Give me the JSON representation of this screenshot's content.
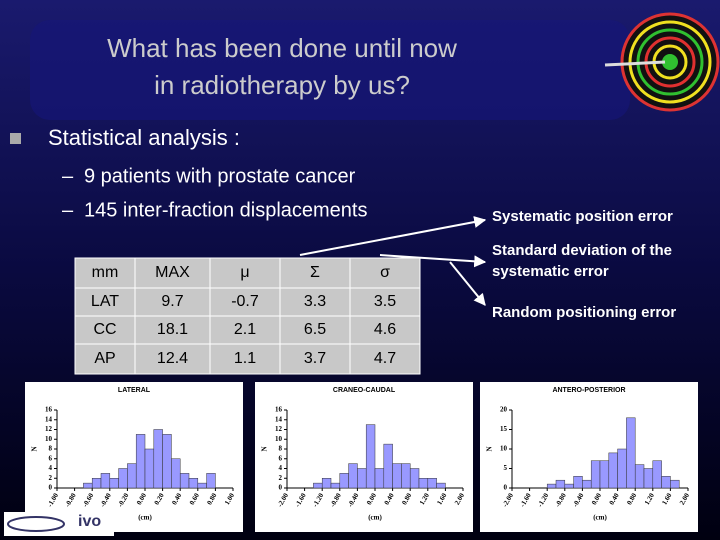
{
  "title": [
    "What has been done until now",
    "in radiotherapy by us?"
  ],
  "bullet": "Statistical analysis :",
  "sub_bullets": [
    "9 patients with prostate cancer",
    "145 inter-fraction displacements"
  ],
  "annotations": [
    "Systematic position error",
    "Standard deviation of the systematic error",
    "Random positioning error"
  ],
  "table": {
    "header": [
      "mm",
      "MAX",
      "μ",
      "Σ",
      "σ"
    ],
    "rows": [
      [
        "LAT",
        "9.7",
        "-0.7",
        "3.3",
        "3.5"
      ],
      [
        "CC",
        "18.1",
        "2.1",
        "6.5",
        "4.6"
      ],
      [
        "AP",
        "12.4",
        "1.1",
        "3.7",
        "4.7"
      ]
    ]
  },
  "logo": "ivo",
  "chart_data": [
    {
      "type": "histogram",
      "title": "LATERAL",
      "x_label": "(cm)",
      "y_label": "N",
      "color": "#9999ff",
      "bins": [
        -1.0,
        -0.9,
        -0.8,
        -0.7,
        -0.6,
        -0.5,
        -0.4,
        -0.3,
        -0.2,
        -0.1,
        0.0,
        0.1,
        0.2,
        0.3,
        0.4,
        0.5,
        0.6,
        0.7,
        0.8,
        0.9,
        1.0
      ],
      "values": [
        0,
        0,
        0,
        1,
        2,
        3,
        2,
        4,
        5,
        11,
        8,
        12,
        11,
        6,
        3,
        2,
        1,
        3,
        0,
        0
      ],
      "xlim": [
        -1,
        1
      ],
      "xticks": [
        {
          "value": -1,
          "label": "-1.00"
        },
        {
          "value": -0.8,
          "label": "-0.80"
        },
        {
          "value": -0.6,
          "label": "-0.60"
        },
        {
          "value": -0.4,
          "label": "-0.40"
        },
        {
          "value": -0.2,
          "label": "-0.20"
        },
        {
          "value": 0,
          "label": "0.00"
        },
        {
          "value": 0.2,
          "label": "0.20"
        },
        {
          "value": 0.4,
          "label": "0.40"
        },
        {
          "value": 0.6,
          "label": "0.60"
        },
        {
          "value": 0.8,
          "label": "0.80"
        },
        {
          "value": 1,
          "label": "1.00"
        }
      ],
      "ylim": [
        0,
        16
      ],
      "yticks": [
        0,
        2,
        4,
        6,
        8,
        10,
        12,
        14,
        16
      ]
    },
    {
      "type": "histogram",
      "title": "CRANEO-CAUDAL",
      "x_label": "(cm)",
      "y_label": "N",
      "color": "#9999ff",
      "bins": [
        -2.0,
        -1.8,
        -1.6,
        -1.4,
        -1.2,
        -1.0,
        -0.8,
        -0.6,
        -0.4,
        -0.2,
        0.0,
        0.2,
        0.4,
        0.6,
        0.8,
        1.0,
        1.2,
        1.4,
        1.6,
        1.8,
        2.0
      ],
      "values": [
        0,
        0,
        0,
        1,
        2,
        1,
        3,
        5,
        4,
        13,
        4,
        9,
        5,
        5,
        4,
        2,
        2,
        1,
        0,
        0
      ],
      "xlim": [
        -2,
        2
      ],
      "xticks": [
        {
          "value": -2,
          "label": "-2.00"
        },
        {
          "value": -1.6,
          "label": "-1.60"
        },
        {
          "value": -1.2,
          "label": "-1.20"
        },
        {
          "value": -0.8,
          "label": "-0.80"
        },
        {
          "value": -0.4,
          "label": "-0.40"
        },
        {
          "value": 0,
          "label": "0.00"
        },
        {
          "value": 0.4,
          "label": "0.40"
        },
        {
          "value": 0.8,
          "label": "0.80"
        },
        {
          "value": 1.2,
          "label": "1.20"
        },
        {
          "value": 1.6,
          "label": "1.60"
        },
        {
          "value": 2,
          "label": "2.00"
        }
      ],
      "ylim": [
        0,
        16
      ],
      "yticks": [
        0,
        2,
        4,
        6,
        8,
        10,
        12,
        14,
        16
      ]
    },
    {
      "type": "histogram",
      "title": "ANTERO-POSTERIOR",
      "x_label": "(cm)",
      "y_label": "N",
      "color": "#9999ff",
      "bins": [
        -2.0,
        -1.8,
        -1.6,
        -1.4,
        -1.2,
        -1.0,
        -0.8,
        -0.6,
        -0.4,
        -0.2,
        0.0,
        0.2,
        0.4,
        0.6,
        0.8,
        1.0,
        1.2,
        1.4,
        1.6,
        1.8,
        2.0
      ],
      "values": [
        0,
        0,
        0,
        0,
        1,
        2,
        1,
        3,
        2,
        7,
        7,
        9,
        10,
        18,
        6,
        5,
        7,
        3,
        2,
        0
      ],
      "xlim": [
        -2,
        2
      ],
      "xticks": [
        {
          "value": -2,
          "label": "-2.00"
        },
        {
          "value": -1.6,
          "label": "-1.60"
        },
        {
          "value": -1.2,
          "label": "-1.20"
        },
        {
          "value": -0.8,
          "label": "-0.80"
        },
        {
          "value": -0.4,
          "label": "-0.40"
        },
        {
          "value": 0,
          "label": "0.00"
        },
        {
          "value": 0.4,
          "label": "0.40"
        },
        {
          "value": 0.8,
          "label": "0.80"
        },
        {
          "value": 1.2,
          "label": "1.20"
        },
        {
          "value": 1.6,
          "label": "1.60"
        },
        {
          "value": 2,
          "label": "2.00"
        }
      ],
      "ylim": [
        0,
        20
      ],
      "yticks": [
        0,
        5,
        10,
        15,
        20
      ]
    }
  ]
}
